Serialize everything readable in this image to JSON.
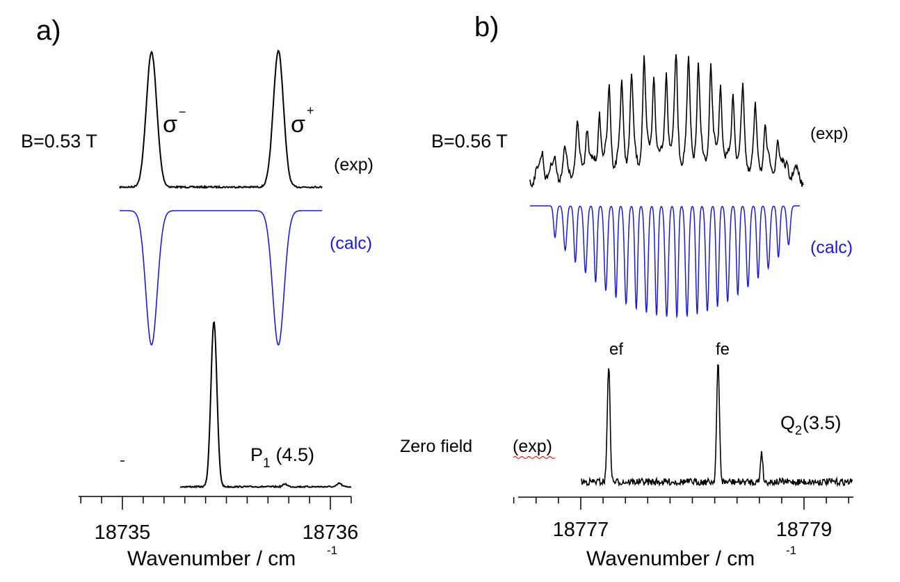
{
  "chart_data": [
    {
      "type": "line",
      "panel_label": "a)",
      "xlabel": "Wavenumber / cm",
      "xlabel_sup": "-1",
      "tick_labels": [
        "18735",
        "18736"
      ],
      "xlim": [
        18734.8,
        18736.1
      ],
      "annotations": {
        "field": "B=0.53 T",
        "sigma_minus": "σ",
        "sigma_minus_sup": "−",
        "sigma_plus": "σ",
        "sigma_plus_sup": "+",
        "exp": "(exp)",
        "calc": "(calc)",
        "transition_main": "P",
        "transition_sub": "1",
        "transition_arg": " (4.5)"
      },
      "series": [
        {
          "name": "exp (B=0.53 T)",
          "peaks_x": [
            18735.14,
            18735.75
          ],
          "direction": "up"
        },
        {
          "name": "calc (B=0.53 T)",
          "peaks_x": [
            18735.14,
            18735.75
          ],
          "direction": "down"
        },
        {
          "name": "exp (zero field)",
          "peaks_x": [
            18735.44
          ],
          "direction": "up"
        }
      ]
    },
    {
      "type": "line",
      "panel_label": "b)",
      "xlabel": "Wavenumber / cm",
      "xlabel_sup": "-1",
      "tick_labels": [
        "18777",
        "18779"
      ],
      "xlim": [
        18776.4,
        18779.5
      ],
      "annotations": {
        "field": "B=0.56 T",
        "exp": "(exp)",
        "calc": "(calc)",
        "zero_field": "Zero field",
        "zero_exp": "(exp)",
        "peak_ef": "ef",
        "peak_fe": "fe",
        "transition_main": "Q",
        "transition_sub": "2",
        "transition_arg": "(3.5)"
      },
      "series": [
        {
          "name": "exp (B=0.56 T)",
          "n_lines": 23,
          "direction": "up"
        },
        {
          "name": "calc (B=0.56 T)",
          "n_lines": 23,
          "direction": "down"
        },
        {
          "name": "exp (zero field)",
          "peaks_x": [
            18777.25,
            18778.23,
            18778.62
          ],
          "direction": "up"
        }
      ]
    }
  ],
  "colors": {
    "exp": "#000000",
    "calc": "#1a1ad6"
  }
}
